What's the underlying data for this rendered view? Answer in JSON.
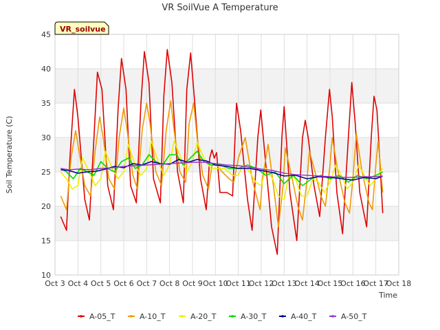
{
  "chart_data": {
    "type": "line",
    "title": "VR SoilVue A Temperature",
    "xlabel": "Time",
    "ylabel": "Soil Temperature (C)",
    "ylim": [
      10,
      45
    ],
    "xlim": [
      3,
      18
    ],
    "yticks": [
      10,
      15,
      20,
      25,
      30,
      35,
      40,
      45
    ],
    "xticks": [
      {
        "v": 3,
        "label": "Oct 3"
      },
      {
        "v": 4,
        "label": "Oct 4"
      },
      {
        "v": 5,
        "label": "Oct 5"
      },
      {
        "v": 6,
        "label": "Oct 6"
      },
      {
        "v": 7,
        "label": "Oct 7"
      },
      {
        "v": 8,
        "label": "Oct 8"
      },
      {
        "v": 9,
        "label": "Oct 9"
      },
      {
        "v": 10,
        "label": "Oct 10"
      },
      {
        "v": 11,
        "label": "Oct 11"
      },
      {
        "v": 12,
        "label": "Oct 12"
      },
      {
        "v": 13,
        "label": "Oct 13"
      },
      {
        "v": 14,
        "label": "Oct 14"
      },
      {
        "v": 15,
        "label": "Oct 15"
      },
      {
        "v": 16,
        "label": "Oct 16"
      },
      {
        "v": 17,
        "label": "Oct 17"
      },
      {
        "v": 18,
        "label": "Oct 18"
      }
    ],
    "banner_label": "VR_soilvue",
    "legend_position": "bottom",
    "grid": true,
    "series": [
      {
        "name": "A-05_T",
        "color": "#dd0000",
        "x": [
          3.25,
          3.5,
          3.65,
          3.85,
          4.0,
          4.3,
          4.5,
          4.7,
          4.85,
          5.05,
          5.3,
          5.55,
          5.75,
          5.9,
          6.1,
          6.3,
          6.55,
          6.75,
          6.9,
          7.1,
          7.3,
          7.6,
          7.75,
          7.9,
          8.1,
          8.35,
          8.6,
          8.75,
          8.92,
          9.1,
          9.35,
          9.6,
          9.75,
          9.85,
          9.95,
          10.05,
          10.2,
          10.5,
          10.75,
          10.92,
          11.1,
          11.4,
          11.6,
          11.85,
          11.98,
          12.2,
          12.45,
          12.7,
          12.9,
          13.0,
          13.25,
          13.55,
          13.8,
          13.92,
          14.05,
          14.3,
          14.55,
          14.8,
          14.98,
          15.1,
          15.3,
          15.55,
          15.8,
          15.95,
          16.1,
          16.3,
          16.6,
          16.8,
          16.92,
          17.05,
          17.3
        ],
        "y": [
          18.5,
          16.5,
          27,
          37,
          33,
          21,
          18,
          30,
          39.5,
          37,
          23,
          19.5,
          34,
          41.5,
          37,
          23,
          20.5,
          35,
          42.5,
          38,
          24,
          20.5,
          36,
          42.8,
          38,
          25,
          20.5,
          37,
          42.3,
          35,
          24,
          19.5,
          27,
          28.2,
          27,
          27.8,
          22,
          22,
          21.5,
          35,
          31,
          21,
          16.5,
          30,
          34,
          26,
          17,
          13,
          30,
          34.5,
          22,
          15,
          30,
          32.5,
          30,
          23,
          18.5,
          30,
          37,
          33,
          22,
          16,
          30,
          38,
          32,
          22,
          17,
          30,
          36,
          34,
          19
        ]
      },
      {
        "name": "A-10_T",
        "color": "#ee9900",
        "x": [
          3.25,
          3.5,
          3.7,
          3.9,
          4.0,
          4.3,
          4.55,
          4.75,
          4.95,
          5.1,
          5.35,
          5.6,
          5.8,
          6.0,
          6.15,
          6.4,
          6.6,
          6.8,
          7.0,
          7.15,
          7.4,
          7.65,
          7.85,
          8.05,
          8.2,
          8.45,
          8.7,
          8.85,
          9.05,
          9.2,
          9.45,
          9.7,
          9.85,
          10.05,
          10.3,
          10.6,
          10.8,
          11.0,
          11.3,
          11.6,
          11.75,
          11.95,
          12.05,
          12.3,
          12.55,
          12.75,
          12.95,
          13.05,
          13.35,
          13.6,
          13.8,
          14.0,
          14.1,
          14.35,
          14.6,
          14.8,
          15.0,
          15.1,
          15.35,
          15.65,
          15.85,
          16.0,
          16.15,
          16.4,
          16.7,
          16.85,
          17.0,
          17.1,
          17.3
        ],
        "y": [
          21.5,
          19.5,
          27,
          31,
          29,
          23,
          21.5,
          28,
          33,
          30,
          24,
          22.5,
          30,
          34.3,
          31,
          24.5,
          22.5,
          31,
          35,
          32,
          25,
          23,
          31,
          35.3,
          31,
          25,
          23.5,
          32,
          35,
          30,
          24.5,
          22.5,
          26,
          26,
          25,
          24,
          23.5,
          27,
          30,
          24,
          22,
          19.5,
          24,
          29,
          22.5,
          17,
          23,
          28.5,
          24,
          20,
          18,
          24,
          28,
          25,
          21.5,
          20,
          26,
          30,
          25,
          20.5,
          19,
          24,
          30.5,
          25,
          20.5,
          19.5,
          26,
          29.5,
          22
        ]
      },
      {
        "name": "A-20_T",
        "color": "#eeee00",
        "x": [
          3.25,
          3.5,
          3.75,
          4.0,
          4.2,
          4.5,
          4.75,
          5.0,
          5.2,
          5.5,
          5.75,
          6.0,
          6.2,
          6.5,
          6.75,
          7.0,
          7.2,
          7.5,
          7.75,
          8.0,
          8.2,
          8.5,
          8.75,
          9.0,
          9.2,
          9.5,
          9.8,
          10.1,
          10.4,
          10.75,
          11.0,
          11.2,
          11.5,
          11.75,
          12.0,
          12.2,
          12.5,
          12.75,
          13.0,
          13.2,
          13.5,
          13.75,
          14.0,
          14.25,
          14.5,
          14.75,
          15.0,
          15.25,
          15.5,
          15.75,
          16.0,
          16.25,
          16.5,
          16.75,
          17.0,
          17.3
        ],
        "y": [
          25,
          24,
          22.5,
          23,
          27,
          25,
          23,
          24,
          28,
          25.5,
          24,
          25,
          29,
          26,
          24.5,
          25.5,
          29.5,
          26.5,
          24.5,
          26,
          29.5,
          27,
          25,
          26.5,
          29.3,
          27,
          25.5,
          25.5,
          25.5,
          24.5,
          24.5,
          26,
          25,
          23.5,
          23,
          25.5,
          24,
          21.5,
          21,
          24.5,
          24,
          21.5,
          21.5,
          24,
          23.5,
          22,
          23.5,
          26,
          24.5,
          22.5,
          23.5,
          26,
          24.5,
          23,
          24,
          25.5
        ]
      },
      {
        "name": "A-30_T",
        "color": "#00dd00",
        "x": [
          3.25,
          3.5,
          3.8,
          4.1,
          4.4,
          4.7,
          5.0,
          5.3,
          5.6,
          5.9,
          6.2,
          6.5,
          6.8,
          7.1,
          7.4,
          7.7,
          8.0,
          8.3,
          8.6,
          8.9,
          9.2,
          9.5,
          9.8,
          10.2,
          10.6,
          11.0,
          11.4,
          11.8,
          12.2,
          12.6,
          13.0,
          13.4,
          13.8,
          14.2,
          14.6,
          15.0,
          15.4,
          15.8,
          16.2,
          16.6,
          17.0,
          17.3
        ],
        "y": [
          25.5,
          25,
          24,
          25.5,
          25,
          24.5,
          26.5,
          25.5,
          25,
          26.5,
          27,
          25.5,
          26,
          27.5,
          26.5,
          26,
          27.5,
          27.5,
          26,
          27,
          28,
          26.5,
          26,
          26,
          25.5,
          25.5,
          26,
          25.5,
          24.5,
          25,
          23.3,
          24.5,
          23,
          24,
          24.5,
          24,
          24.5,
          23.5,
          24.5,
          24,
          24.5,
          25
        ]
      },
      {
        "name": "A-40_T",
        "color": "#000099",
        "x": [
          3.25,
          3.6,
          4.0,
          4.4,
          4.8,
          5.2,
          5.6,
          6.0,
          6.4,
          6.8,
          7.2,
          7.6,
          8.0,
          8.4,
          8.8,
          9.2,
          9.6,
          10.0,
          10.5,
          11.0,
          11.5,
          12.0,
          12.5,
          13.0,
          13.5,
          14.0,
          14.5,
          15.0,
          15.5,
          16.0,
          16.5,
          17.0,
          17.3
        ],
        "y": [
          25.3,
          25.2,
          24.8,
          25.0,
          25.1,
          25.4,
          25.8,
          25.6,
          26.2,
          26.0,
          26.5,
          26.2,
          26.1,
          26.8,
          26.4,
          26.8,
          26.6,
          26.0,
          25.8,
          25.5,
          25.5,
          25.2,
          24.9,
          24.4,
          24.5,
          24.0,
          24.3,
          24.2,
          24.0,
          23.8,
          24.2,
          24.0,
          24.4
        ]
      },
      {
        "name": "A-50_T",
        "color": "#9933cc",
        "x": [
          3.25,
          3.6,
          4.0,
          4.5,
          5.0,
          5.5,
          6.0,
          6.5,
          7.0,
          7.5,
          8.0,
          8.5,
          9.0,
          9.5,
          10.0,
          10.5,
          11.0,
          11.5,
          12.0,
          12.5,
          13.0,
          13.5,
          14.0,
          14.5,
          15.0,
          15.5,
          16.0,
          16.5,
          17.0,
          17.3
        ],
        "y": [
          25.5,
          25.3,
          25.4,
          25.3,
          25.5,
          25.6,
          25.8,
          25.9,
          26.0,
          26.1,
          26.2,
          26.3,
          26.4,
          26.4,
          26.2,
          26.0,
          25.9,
          25.7,
          25.4,
          25.2,
          24.8,
          24.6,
          24.5,
          24.4,
          24.3,
          24.2,
          24.2,
          24.3,
          24.3,
          24.4
        ]
      }
    ]
  }
}
